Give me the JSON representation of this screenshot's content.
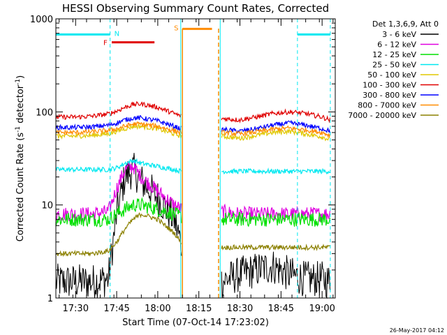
{
  "chart_data": {
    "type": "line",
    "title": "HESSI Observing Summary Count Rates, Corrected",
    "xlabel": "Start Time (07-Oct-14 17:23:02)",
    "ylabel_prefix": "Corrected Count Rate (s",
    "ylabel_sup1": "-1",
    "ylabel_mid": " detector",
    "ylabel_sup2": "-1",
    "ylabel_suffix": ")",
    "footer_date": "26-May-2017 04:12",
    "legend_header": "Det 1,3,6,9, Att 0",
    "legend_placement": "right",
    "y_scale": "log",
    "ylim": [
      1,
      1000
    ],
    "xlim_minutes": [
      17.38,
      19.08
    ],
    "y_ticks": [
      {
        "value": 1,
        "label": "1"
      },
      {
        "value": 10,
        "label": "10"
      },
      {
        "value": 100,
        "label": "100"
      },
      {
        "value": 1000,
        "label": "1000"
      }
    ],
    "x_ticks": [
      {
        "value": 17.5,
        "label": "17:30"
      },
      {
        "value": 17.75,
        "label": "17:45"
      },
      {
        "value": 18.0,
        "label": "18:00"
      },
      {
        "value": 18.25,
        "label": "18:15"
      },
      {
        "value": 18.5,
        "label": "18:30"
      },
      {
        "value": 18.75,
        "label": "18:45"
      },
      {
        "value": 19.0,
        "label": "19:00"
      }
    ],
    "gaps": [
      [
        18.145,
        18.385
      ]
    ],
    "night_markers": [
      17.71,
      18.85,
      19.05
    ],
    "day_markers": [
      18.14,
      18.38
    ],
    "saa_markers": [
      18.15,
      18.37
    ],
    "series": [
      {
        "name": "3 - 6 keV",
        "color": "#000000",
        "x": [
          17.38,
          17.5,
          17.6,
          17.7,
          17.75,
          17.8,
          17.85,
          17.9,
          18.0,
          18.1,
          18.14,
          18.385,
          18.5,
          18.6,
          18.7,
          18.8,
          18.9,
          19.0,
          19.05
        ],
        "y": [
          1.5,
          1.5,
          1.5,
          1.6,
          8,
          20,
          24,
          18,
          12,
          7,
          4,
          1.5,
          1.8,
          2,
          2.2,
          1.8,
          1.6,
          1.6,
          1.5
        ]
      },
      {
        "name": "6 - 12 keV",
        "color": "#e000e0",
        "x": [
          17.38,
          17.5,
          17.6,
          17.7,
          17.75,
          17.8,
          17.85,
          17.9,
          18.0,
          18.1,
          18.14,
          18.385,
          18.5,
          18.6,
          18.7,
          18.8,
          18.9,
          19.0,
          19.05
        ],
        "y": [
          8,
          8,
          8,
          8.5,
          15,
          24,
          26,
          20,
          14,
          10,
          9,
          8.5,
          8,
          8,
          8,
          8,
          8,
          8,
          8
        ]
      },
      {
        "name": "12 - 25 keV",
        "color": "#00e000",
        "x": [
          17.38,
          17.5,
          17.6,
          17.7,
          17.75,
          17.8,
          17.85,
          17.9,
          18.0,
          18.1,
          18.14,
          18.385,
          18.5,
          18.6,
          18.7,
          18.8,
          18.9,
          19.0,
          19.05
        ],
        "y": [
          7,
          7,
          7,
          7,
          8,
          9,
          10,
          10,
          9,
          8,
          7.5,
          7,
          7,
          7,
          7,
          7,
          7,
          7,
          7
        ]
      },
      {
        "name": "25 - 50 keV",
        "color": "#00e8f0",
        "x": [
          17.38,
          17.5,
          17.6,
          17.7,
          17.75,
          17.8,
          17.85,
          17.9,
          18.0,
          18.1,
          18.14,
          18.385,
          18.5,
          18.6,
          18.7,
          18.8,
          18.9,
          19.0,
          19.05
        ],
        "y": [
          24,
          24,
          24,
          24,
          25,
          28,
          30,
          28,
          26,
          24,
          23,
          23,
          23,
          23,
          23,
          23,
          23,
          23,
          23
        ]
      },
      {
        "name": "50 - 100 keV",
        "color": "#e0c800",
        "x": [
          17.38,
          17.5,
          17.6,
          17.7,
          17.75,
          17.8,
          17.85,
          17.9,
          18.0,
          18.1,
          18.14,
          18.385,
          18.5,
          18.6,
          18.7,
          18.8,
          18.9,
          19.0,
          19.05
        ],
        "y": [
          55,
          55,
          56,
          58,
          62,
          66,
          70,
          70,
          66,
          58,
          55,
          55,
          52,
          56,
          60,
          62,
          58,
          54,
          50
        ]
      },
      {
        "name": "100 - 300 keV",
        "color": "#e00000",
        "x": [
          17.38,
          17.5,
          17.6,
          17.7,
          17.75,
          17.8,
          17.85,
          17.9,
          18.0,
          18.1,
          18.14,
          18.385,
          18.5,
          18.6,
          18.7,
          18.8,
          18.9,
          19.0,
          19.05
        ],
        "y": [
          88,
          88,
          90,
          95,
          102,
          112,
          120,
          122,
          112,
          96,
          90,
          85,
          82,
          88,
          96,
          100,
          96,
          88,
          82
        ]
      },
      {
        "name": "300 - 800 keV",
        "color": "#0000ff",
        "x": [
          17.38,
          17.5,
          17.6,
          17.7,
          17.75,
          17.8,
          17.85,
          17.9,
          18.0,
          18.1,
          18.14,
          18.385,
          18.5,
          18.6,
          18.7,
          18.8,
          18.9,
          19.0,
          19.05
        ],
        "y": [
          68,
          68,
          69,
          72,
          76,
          82,
          86,
          86,
          80,
          70,
          66,
          65,
          62,
          66,
          72,
          76,
          72,
          66,
          62
        ]
      },
      {
        "name": "800 - 7000 keV",
        "color": "#ff8c00",
        "x": [
          17.38,
          17.5,
          17.6,
          17.7,
          17.75,
          17.8,
          17.85,
          17.9,
          18.0,
          18.1,
          18.14,
          18.385,
          18.5,
          18.6,
          18.7,
          18.8,
          18.9,
          19.0,
          19.05
        ],
        "y": [
          60,
          60,
          61,
          63,
          66,
          70,
          74,
          74,
          70,
          63,
          60,
          60,
          58,
          61,
          65,
          67,
          64,
          60,
          56
        ]
      },
      {
        "name": "7000 - 20000 keV",
        "color": "#8b8000",
        "x": [
          17.38,
          17.5,
          17.6,
          17.7,
          17.75,
          17.8,
          17.85,
          17.9,
          18.0,
          18.1,
          18.14,
          18.385,
          18.5,
          18.6,
          18.7,
          18.8,
          18.9,
          19.0,
          19.05
        ],
        "y": [
          3,
          3,
          3,
          3.2,
          4,
          5.5,
          7,
          8,
          7,
          5,
          4,
          3.5,
          3.5,
          3.5,
          3.5,
          3.5,
          3.5,
          3.5,
          3.5
        ]
      }
    ],
    "flags": [
      {
        "label": "N",
        "color": "#00e8f0",
        "segments": [
          [
            17.38,
            17.71
          ],
          [
            18.85,
            19.05
          ]
        ],
        "y": 680
      },
      {
        "label": "F",
        "color": "#e00000",
        "segments": [
          [
            17.72,
            17.98
          ]
        ],
        "y": 560
      },
      {
        "label": "S",
        "color": "#ff8c00",
        "segments": [
          [
            18.15,
            18.33
          ]
        ],
        "y": 780
      }
    ]
  }
}
